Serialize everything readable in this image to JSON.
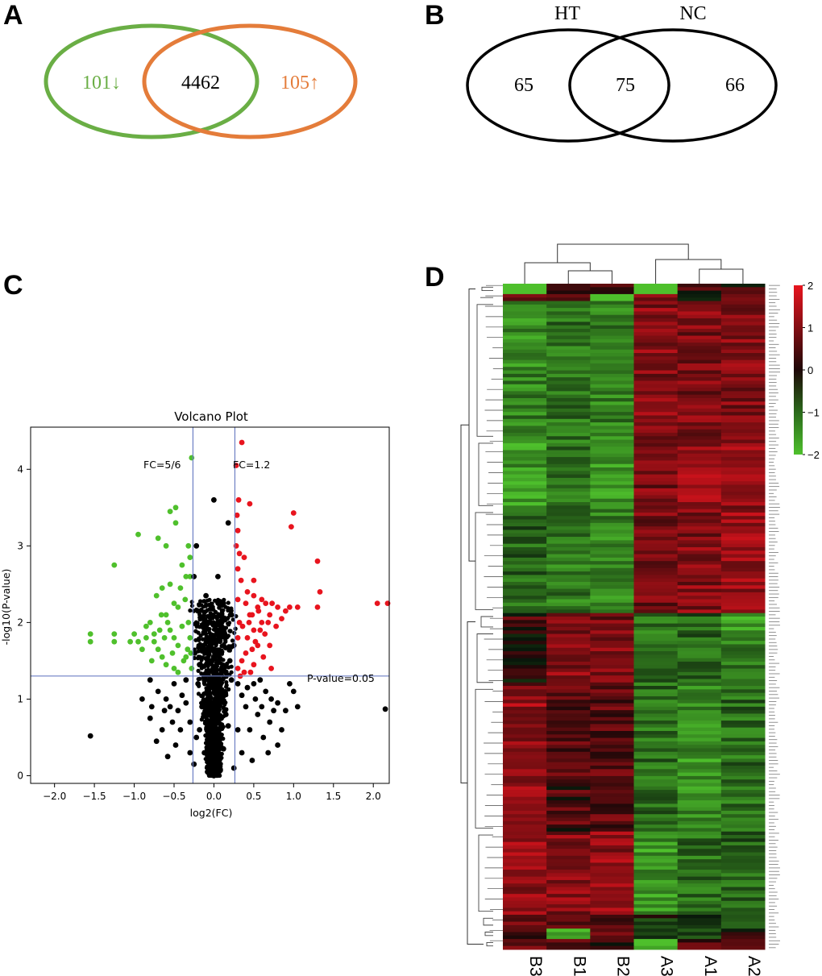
{
  "panel_labels": {
    "a": "A",
    "b": "B",
    "c": "C",
    "d": "D"
  },
  "colors": {
    "green": "#6aae45",
    "orange": "#e47c3a",
    "red": "#e8141e",
    "bright_green": "#4fc02c",
    "black": "#000000",
    "guide": "#6c7fc4"
  },
  "chart_data": [
    {
      "type": "venn",
      "panel": "A",
      "sets": [
        {
          "name": "left",
          "color": "#6aae45",
          "only_label": "101↓"
        },
        {
          "name": "right",
          "color": "#e47c3a",
          "only_label": "105↑"
        }
      ],
      "intersection_label": "4462"
    },
    {
      "type": "venn",
      "panel": "B",
      "sets": [
        {
          "name": "HT",
          "only_label": "65"
        },
        {
          "name": "NC",
          "only_label": "66"
        }
      ],
      "intersection_label": "75"
    },
    {
      "type": "scatter",
      "panel": "C",
      "title": "Volcano Plot",
      "xlabel": "log2(FC)",
      "ylabel": "-log10(P-value)",
      "xlim": [
        -2.3,
        2.2
      ],
      "ylim": [
        -0.1,
        4.55
      ],
      "xticks": [
        "−2.0",
        "−1.5",
        "−1.0",
        "−0.5",
        "0.0",
        "0.5",
        "1.0",
        "1.5",
        "2.0"
      ],
      "xtick_values": [
        -2.0,
        -1.5,
        -1.0,
        -0.5,
        0.0,
        0.5,
        1.0,
        1.5,
        2.0
      ],
      "yticks": [
        "0",
        "1",
        "2",
        "3",
        "4"
      ],
      "ytick_values": [
        0,
        1,
        2,
        3,
        4
      ],
      "thresholds": {
        "fc_low": -0.263,
        "fc_high": 0.263,
        "p": 1.301
      },
      "annotations": {
        "fc_low": "FC=5/6",
        "fc_high": "FC=1.2",
        "p": "P-value=0.05"
      },
      "series": [
        {
          "name": "up",
          "color": "#e8141e",
          "points": [
            [
              0.35,
              4.35
            ],
            [
              0.28,
              4.05
            ],
            [
              1.0,
              3.43
            ],
            [
              0.97,
              3.25
            ],
            [
              0.3,
              3.2
            ],
            [
              0.45,
              3.55
            ],
            [
              0.28,
              3.0
            ],
            [
              0.38,
              2.85
            ],
            [
              0.5,
              2.55
            ],
            [
              1.3,
              2.8
            ],
            [
              1.33,
              2.4
            ],
            [
              1.3,
              2.2
            ],
            [
              2.05,
              2.25
            ],
            [
              2.18,
              2.25
            ],
            [
              1.05,
              2.2
            ],
            [
              0.9,
              2.15
            ],
            [
              0.8,
              2.2
            ],
            [
              0.7,
              2.1
            ],
            [
              0.6,
              2.0
            ],
            [
              0.55,
              2.2
            ],
            [
              0.5,
              1.9
            ],
            [
              0.45,
              2.1
            ],
            [
              0.42,
              1.8
            ],
            [
              0.4,
              1.6
            ],
            [
              0.35,
              1.5
            ],
            [
              0.32,
              2.0
            ],
            [
              0.3,
              1.4
            ],
            [
              0.38,
              1.35
            ],
            [
              0.5,
              1.45
            ],
            [
              0.55,
              1.7
            ],
            [
              0.62,
              1.55
            ],
            [
              0.72,
              1.4
            ],
            [
              0.48,
              1.65
            ],
            [
              0.3,
              2.3
            ],
            [
              0.34,
              2.55
            ],
            [
              0.42,
              2.4
            ],
            [
              0.6,
              2.3
            ],
            [
              0.68,
              2.0
            ],
            [
              0.78,
              1.95
            ],
            [
              0.85,
              2.05
            ],
            [
              0.95,
              2.2
            ],
            [
              0.3,
              1.8
            ],
            [
              0.36,
              1.95
            ],
            [
              0.44,
              2.0
            ],
            [
              0.52,
              1.75
            ],
            [
              0.58,
              1.9
            ],
            [
              0.33,
              1.3
            ],
            [
              0.46,
              1.35
            ],
            [
              0.4,
              2.25
            ],
            [
              0.65,
              2.25
            ],
            [
              0.73,
              2.25
            ],
            [
              0.3,
              2.7
            ],
            [
              0.32,
              2.9
            ],
            [
              0.29,
              3.4
            ],
            [
              0.31,
              3.6
            ],
            [
              0.5,
              2.35
            ],
            [
              0.56,
              2.15
            ],
            [
              0.48,
              2.1
            ],
            [
              0.64,
              1.85
            ],
            [
              0.7,
              1.7
            ]
          ]
        },
        {
          "name": "down",
          "color": "#4fc02c",
          "points": [
            [
              -0.28,
              4.15
            ],
            [
              -0.48,
              3.5
            ],
            [
              -0.55,
              3.45
            ],
            [
              -0.48,
              3.3
            ],
            [
              -0.95,
              3.15
            ],
            [
              -0.7,
              3.1
            ],
            [
              -0.6,
              3.0
            ],
            [
              -1.25,
              2.75
            ],
            [
              -0.4,
              2.75
            ],
            [
              -0.3,
              2.85
            ],
            [
              -0.35,
              2.6
            ],
            [
              -0.55,
              2.5
            ],
            [
              -0.65,
              2.45
            ],
            [
              -0.72,
              2.35
            ],
            [
              -0.45,
              2.2
            ],
            [
              -0.6,
              2.1
            ],
            [
              -0.8,
              2.0
            ],
            [
              -1.0,
              1.85
            ],
            [
              -1.05,
              1.75
            ],
            [
              -1.25,
              1.85
            ],
            [
              -1.25,
              1.75
            ],
            [
              -1.55,
              1.85
            ],
            [
              -1.55,
              1.75
            ],
            [
              -0.85,
              1.8
            ],
            [
              -0.75,
              1.75
            ],
            [
              -0.7,
              1.65
            ],
            [
              -0.65,
              1.55
            ],
            [
              -0.6,
              1.45
            ],
            [
              -0.5,
              1.4
            ],
            [
              -0.45,
              1.35
            ],
            [
              -0.38,
              1.5
            ],
            [
              -0.33,
              1.65
            ],
            [
              -0.3,
              1.8
            ],
            [
              -0.32,
              2.0
            ],
            [
              -0.36,
              2.3
            ],
            [
              -0.42,
              2.45
            ],
            [
              -0.5,
              1.8
            ],
            [
              -0.55,
              1.9
            ],
            [
              -0.62,
              1.8
            ],
            [
              -0.68,
              1.9
            ],
            [
              -0.9,
              1.65
            ],
            [
              -0.78,
              1.5
            ],
            [
              -0.28,
              1.4
            ],
            [
              -0.3,
              2.6
            ],
            [
              -0.32,
              3.0
            ],
            [
              -0.4,
              1.95
            ],
            [
              -0.45,
              1.7
            ],
            [
              -0.52,
              1.6
            ],
            [
              -0.58,
              2.0
            ],
            [
              -0.66,
              2.1
            ],
            [
              -0.5,
              2.25
            ],
            [
              -0.75,
              1.85
            ],
            [
              -0.85,
              1.95
            ],
            [
              -0.95,
              1.75
            ],
            [
              -0.35,
              1.55
            ],
            [
              -0.29,
              1.6
            ]
          ]
        },
        {
          "name": "not_significant",
          "color": "#000000",
          "points": [
            [
              -1.55,
              0.52
            ],
            [
              2.15,
              0.87
            ],
            [
              0.0,
              3.6
            ],
            [
              -0.22,
              3.0
            ],
            [
              0.18,
              3.3
            ],
            [
              0.05,
              2.6
            ],
            [
              -0.1,
              2.35
            ],
            [
              0.12,
              2.25
            ],
            [
              -0.25,
              2.6
            ],
            [
              -0.2,
              2.15
            ],
            [
              0.22,
              2.1
            ],
            [
              -0.15,
              1.95
            ],
            [
              0.1,
              1.9
            ],
            [
              -0.05,
              1.8
            ],
            [
              0.25,
              1.7
            ],
            [
              -0.24,
              1.6
            ],
            [
              0.2,
              1.5
            ],
            [
              -0.18,
              1.45
            ],
            [
              0.15,
              1.35
            ],
            [
              -0.12,
              1.3
            ],
            [
              -0.8,
              1.25
            ],
            [
              -0.7,
              1.1
            ],
            [
              -0.6,
              1.0
            ],
            [
              -0.55,
              0.9
            ],
            [
              -0.45,
              0.85
            ],
            [
              -0.5,
              1.2
            ],
            [
              -0.35,
              1.25
            ],
            [
              -0.3,
              0.7
            ],
            [
              -0.42,
              0.6
            ],
            [
              -0.22,
              0.5
            ],
            [
              -0.58,
              0.25
            ],
            [
              -0.3,
              0.3
            ],
            [
              -0.8,
              0.75
            ],
            [
              -0.9,
              1.0
            ],
            [
              -0.78,
              0.9
            ],
            [
              -0.65,
              0.6
            ],
            [
              0.3,
              1.2
            ],
            [
              0.35,
              1.05
            ],
            [
              0.42,
              1.15
            ],
            [
              0.5,
              1.2
            ],
            [
              0.58,
              1.25
            ],
            [
              0.65,
              1.1
            ],
            [
              0.72,
              1.0
            ],
            [
              0.8,
              0.95
            ],
            [
              0.9,
              0.85
            ],
            [
              0.7,
              0.7
            ],
            [
              0.62,
              0.5
            ],
            [
              0.8,
              0.4
            ],
            [
              0.45,
              0.6
            ],
            [
              0.55,
              0.8
            ],
            [
              0.35,
              0.3
            ],
            [
              0.48,
              0.2
            ],
            [
              1.0,
              1.1
            ],
            [
              1.05,
              0.9
            ],
            [
              0.85,
              0.6
            ],
            [
              0.6,
              0.9
            ],
            [
              0.4,
              0.9
            ],
            [
              -0.4,
              1.05
            ],
            [
              -0.48,
              0.4
            ],
            [
              -0.25,
              0.15
            ],
            [
              0.25,
              0.1
            ],
            [
              -0.2,
              1.2
            ],
            [
              0.22,
              1.25
            ],
            [
              0.3,
              0.6
            ],
            [
              -0.35,
              0.95
            ],
            [
              -0.62,
              0.85
            ],
            [
              0.75,
              0.85
            ],
            [
              0.95,
              1.2
            ],
            [
              -0.72,
              0.45
            ],
            [
              0.68,
              0.3
            ],
            [
              0.52,
              1.0
            ],
            [
              -0.52,
              0.7
            ],
            [
              -0.15,
              0.9
            ],
            [
              0.15,
              0.8
            ],
            [
              -0.08,
              0.05
            ],
            [
              0.08,
              0.08
            ],
            [
              0.0,
              0.0
            ],
            [
              -0.12,
              0.3
            ],
            [
              0.12,
              0.35
            ],
            [
              -0.18,
              0.6
            ],
            [
              0.18,
              0.65
            ],
            [
              0.02,
              1.1
            ],
            [
              -0.02,
              1.5
            ],
            [
              0.05,
              2.0
            ]
          ]
        }
      ]
    },
    {
      "type": "heatmap",
      "panel": "D",
      "columns": [
        "B3",
        "B1",
        "B2",
        "A3",
        "A1",
        "A2"
      ],
      "colorbar": {
        "min": -2,
        "max": 2,
        "ticks": [
          "2",
          "1",
          "0",
          "−1",
          "−2"
        ],
        "tick_values": [
          2,
          1,
          0,
          -1,
          -2
        ]
      },
      "row_groups": [
        {
          "rows": 3,
          "values": [
            -2,
            0.3,
            0.4,
            -1.8,
            0.4,
            0.2
          ]
        },
        {
          "rows": 2,
          "values": [
            0.6,
            0.5,
            -2,
            1.2,
            0.3,
            0.4
          ]
        },
        {
          "rows": 40,
          "values": [
            -1.3,
            -1.1,
            -1.2,
            1.0,
            0.9,
            1.0
          ]
        },
        {
          "rows": 20,
          "values": [
            -1.5,
            -1.0,
            -1.6,
            0.9,
            1.2,
            1.1
          ]
        },
        {
          "rows": 30,
          "values": [
            -0.9,
            -1.2,
            -1.3,
            0.8,
            1.0,
            1.2
          ]
        },
        {
          "rows": 5,
          "values": [
            0.4,
            1.0,
            0.9,
            -1.0,
            -0.8,
            -1.5
          ]
        },
        {
          "rows": 16,
          "values": [
            0.2,
            1.0,
            1.0,
            -1.0,
            -0.9,
            -1.2
          ]
        },
        {
          "rows": 42,
          "values": [
            1.2,
            0.5,
            0.6,
            -1.0,
            -1.4,
            -1.0
          ]
        },
        {
          "rows": 24,
          "values": [
            1.1,
            1.0,
            1.1,
            -1.5,
            -1.0,
            -0.9
          ]
        },
        {
          "rows": 4,
          "values": [
            0.6,
            0.5,
            0.6,
            -0.4,
            -0.3,
            -0.4
          ]
        },
        {
          "rows": 3,
          "values": [
            0.3,
            -2.0,
            0.5,
            -0.2,
            -0.5,
            0.3
          ]
        },
        {
          "rows": 3,
          "values": [
            0.6,
            0.8,
            0.5,
            -2.0,
            0.4,
            0.6
          ]
        }
      ]
    }
  ]
}
